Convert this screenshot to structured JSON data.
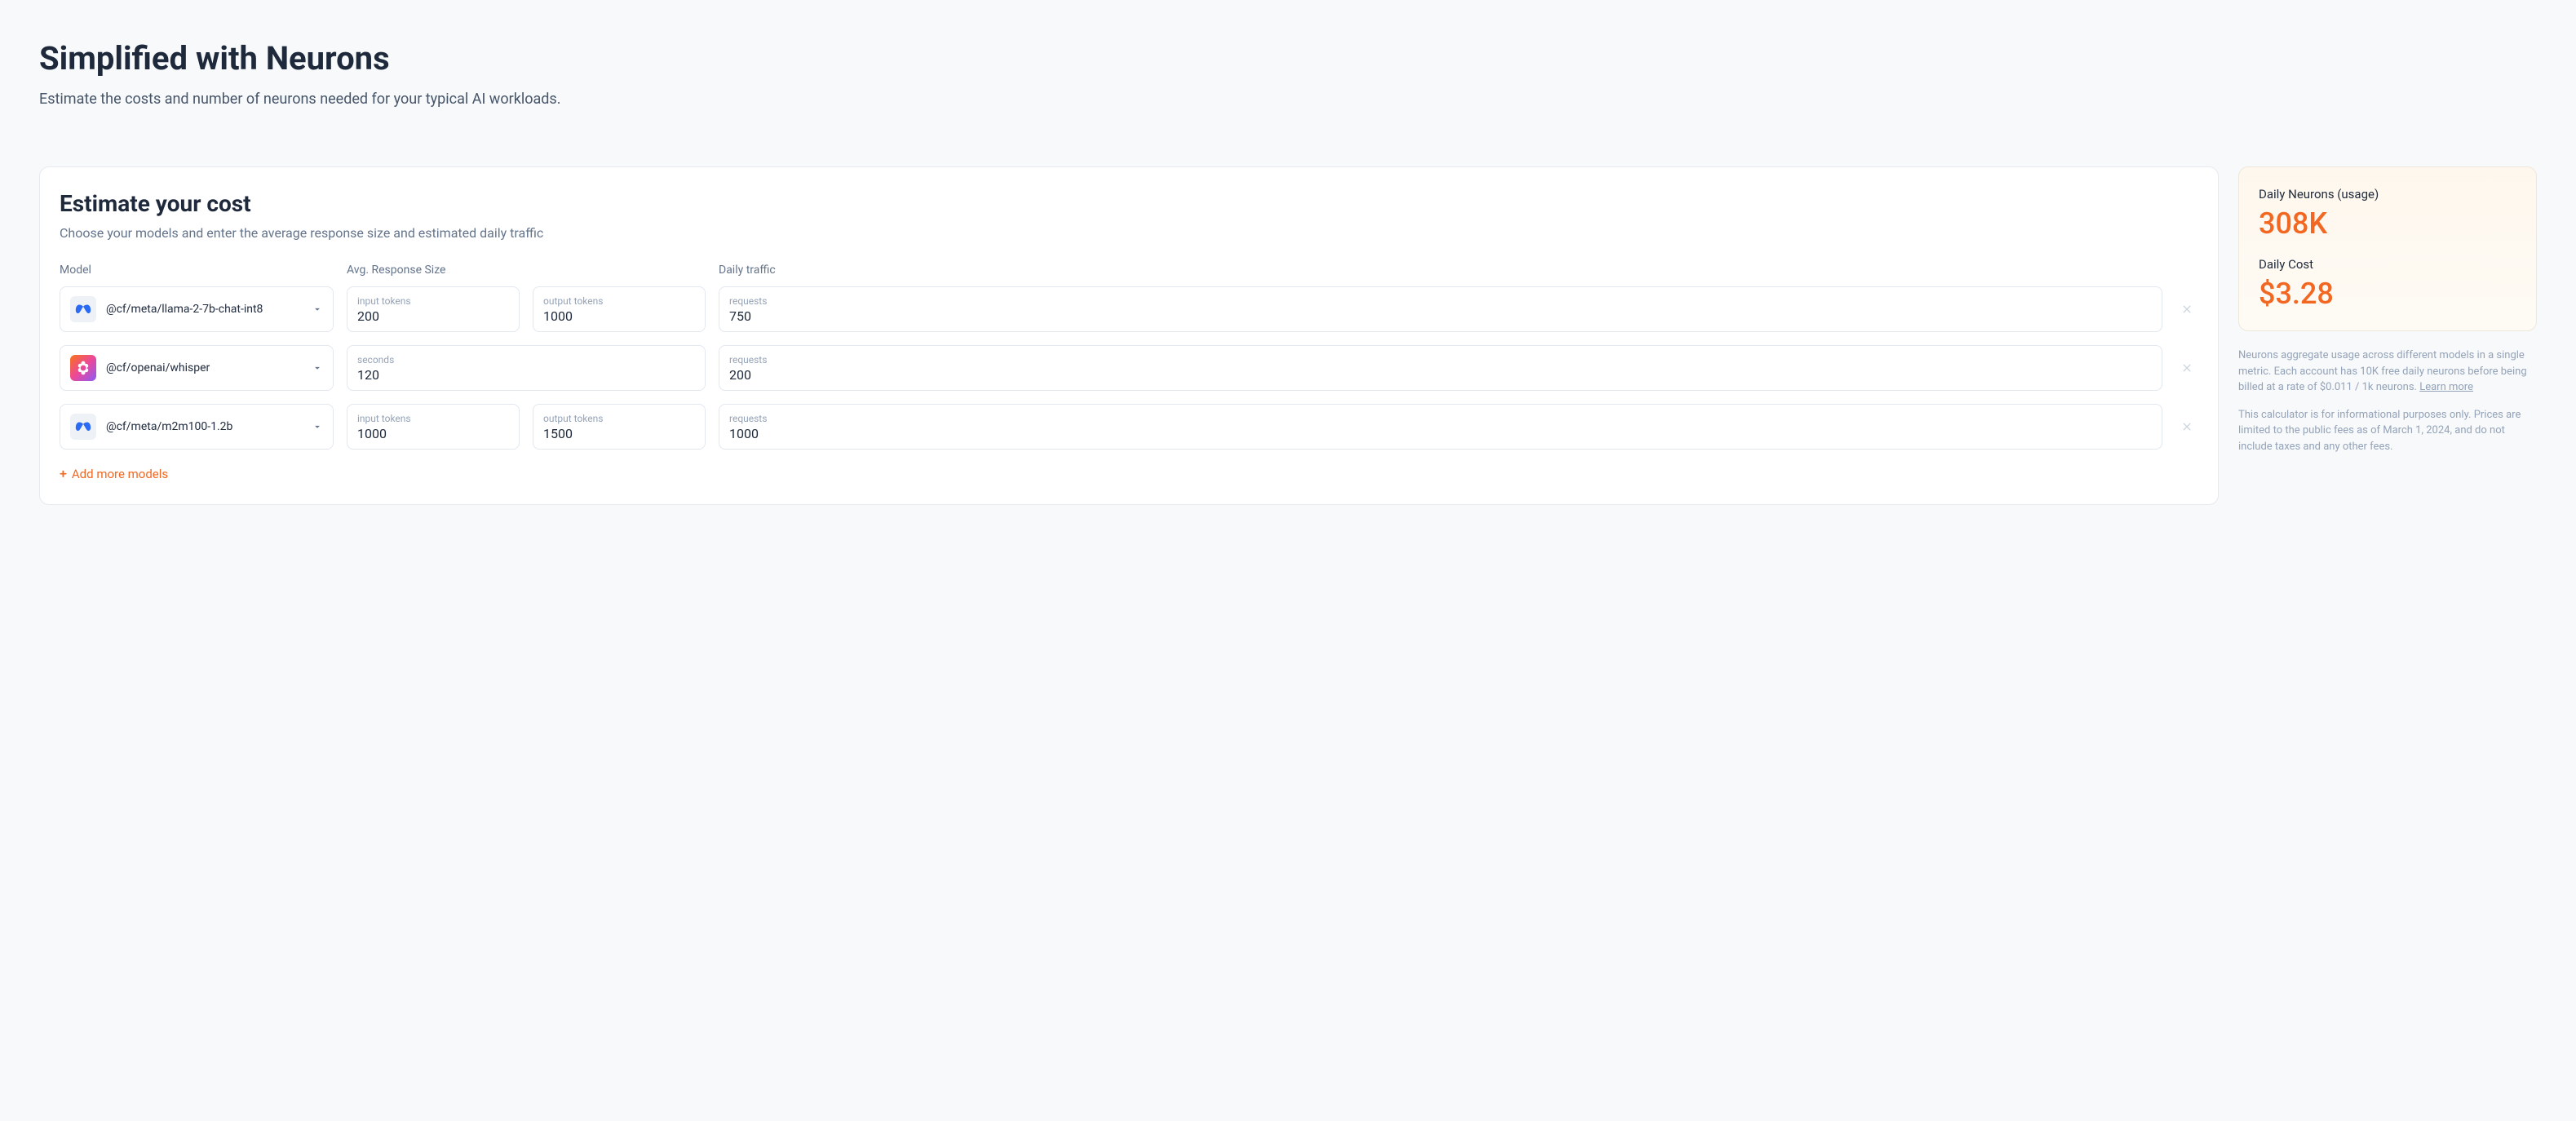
{
  "header": {
    "title": "Simplified with Neurons",
    "subtitle": "Estimate the costs and number of neurons needed for your typical AI workloads."
  },
  "estimate": {
    "title": "Estimate your cost",
    "subtitle": "Choose your models and enter the average response size and estimated daily traffic",
    "columns": {
      "model": "Model",
      "response": "Avg. Response Size",
      "traffic": "Daily traffic"
    },
    "rows": [
      {
        "icon_type": "meta",
        "model": "@cf/meta/llama-2-7b-chat-int8",
        "inputs": [
          {
            "label": "input tokens",
            "value": "200"
          },
          {
            "label": "output tokens",
            "value": "1000"
          }
        ],
        "traffic": {
          "label": "requests",
          "value": "750"
        }
      },
      {
        "icon_type": "openai",
        "model": "@cf/openai/whisper",
        "inputs": [
          {
            "label": "seconds",
            "value": "120"
          }
        ],
        "traffic": {
          "label": "requests",
          "value": "200"
        }
      },
      {
        "icon_type": "meta",
        "model": "@cf/meta/m2m100-1.2b",
        "inputs": [
          {
            "label": "input tokens",
            "value": "1000"
          },
          {
            "label": "output tokens",
            "value": "1500"
          }
        ],
        "traffic": {
          "label": "requests",
          "value": "1000"
        }
      }
    ],
    "add_more": "Add more models"
  },
  "summary": {
    "neurons_label": "Daily Neurons (usage)",
    "neurons_value": "308K",
    "cost_label": "Daily Cost",
    "cost_value": "$3.28"
  },
  "footnotes": {
    "note1": "Neurons aggregate usage across different models in a single metric. Each account has 10K free daily neurons before being billed at a rate of $0.011 / 1k neurons. ",
    "learn_more": "Learn more",
    "note2": "This calculator is for informational purposes only. Prices are limited to the public fees as of March 1, 2024, and do not include taxes and any other fees."
  },
  "colors": {
    "background": "#f7f9fb",
    "card_bg": "#ffffff",
    "border": "#e2e8f0",
    "text_primary": "#1e293b",
    "text_secondary": "#64748b",
    "text_muted": "#94a3b8",
    "accent": "#f26721",
    "summary_bg_from": "#fef7ed",
    "summary_bg_to": "#fefbf5"
  }
}
